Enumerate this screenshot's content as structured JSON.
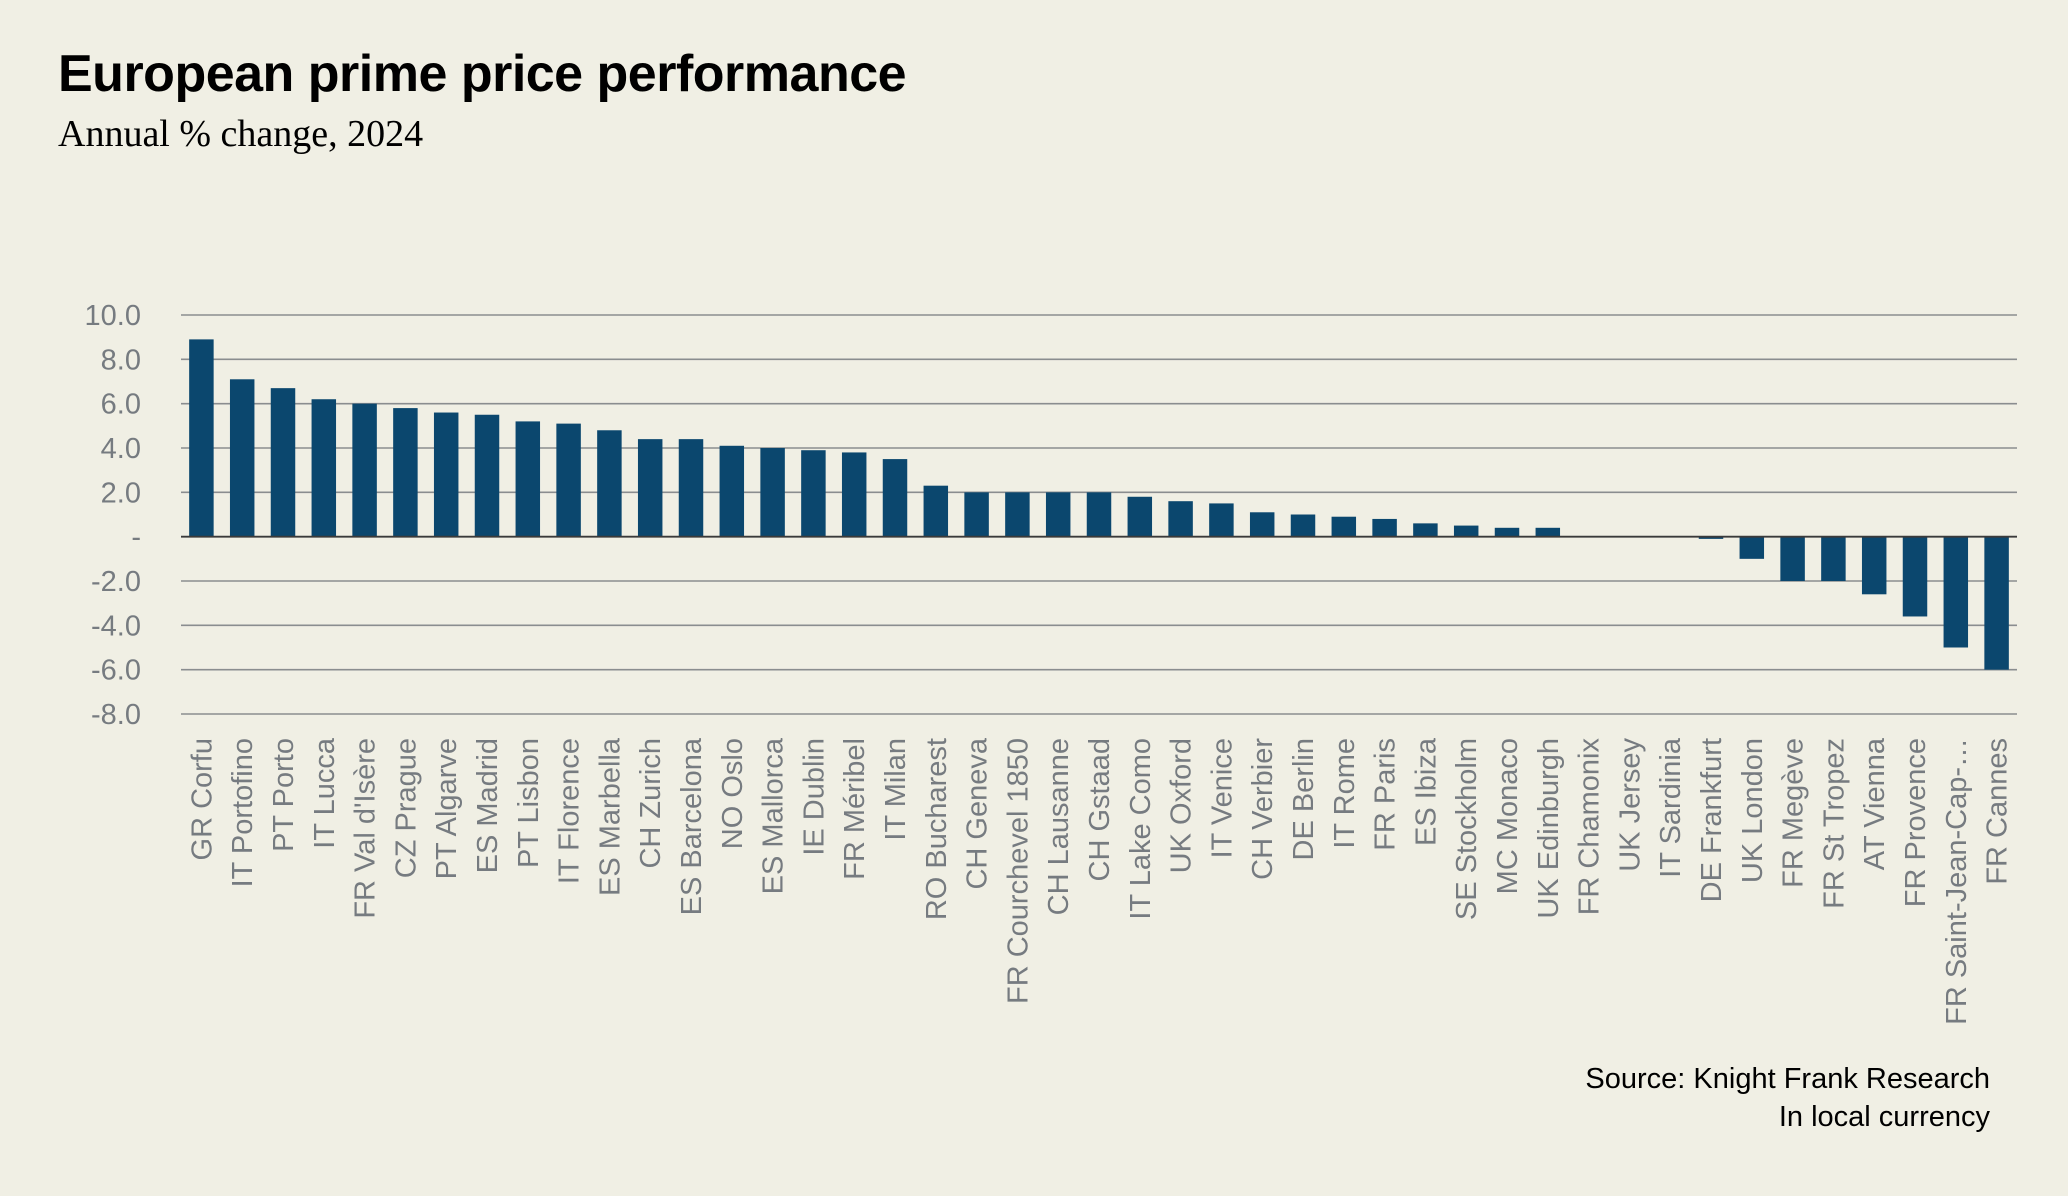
{
  "header": {
    "title": "European prime price performance",
    "subtitle": "Annual % change, 2024"
  },
  "footer": {
    "source": "Source: Knight Frank Research",
    "note": "In local currency"
  },
  "colors": {
    "background": "#f0efe4",
    "bar": "#0b476e",
    "axis_text": "#767b80",
    "gridline": "#8a8d8f",
    "zero_line": "#3a3a3a"
  },
  "chart_data": {
    "type": "bar",
    "title": "European prime price performance",
    "subtitle": "Annual % change, 2024",
    "xlabel": "",
    "ylabel": "",
    "ylim": [
      -8,
      10
    ],
    "yticks": [
      10,
      8,
      6,
      4,
      2,
      0,
      -2,
      -4,
      -6,
      -8
    ],
    "ytick_labels": [
      "10.0",
      "8.0",
      "6.0",
      "4.0",
      "2.0",
      "-",
      "-2.0",
      "-4.0",
      "-6.0",
      "-8.0"
    ],
    "grid": true,
    "legend": "none",
    "categories": [
      "GR Corfu",
      "IT Portofino",
      "PT Porto",
      "IT Lucca",
      "FR Val d'Isère",
      "CZ Prague",
      "PT Algarve",
      "ES Madrid",
      "PT Lisbon",
      "IT Florence",
      "ES Marbella",
      "CH Zurich",
      "ES Barcelona",
      "NO Oslo",
      "ES Mallorca",
      "IE Dublin",
      "FR Méribel",
      "IT Milan",
      "RO Bucharest",
      "CH Geneva",
      "FR Courchevel 1850",
      "CH Lausanne",
      "CH Gstaad",
      "IT Lake Como",
      "UK Oxford",
      "IT Venice",
      "CH Verbier",
      "DE Berlin",
      "IT Rome",
      "FR Paris",
      "ES Ibiza",
      "SE Stockholm",
      "MC Monaco",
      "UK Edinburgh",
      "FR Chamonix",
      "UK Jersey",
      "IT Sardinia",
      "DE Frankfurt",
      "UK London",
      "FR Megève",
      "FR St Tropez",
      "AT Vienna",
      "FR Provence",
      "FR Saint-Jean-Cap-…",
      "FR Cannes"
    ],
    "values": [
      8.9,
      7.1,
      6.7,
      6.2,
      6.0,
      5.8,
      5.6,
      5.5,
      5.2,
      5.1,
      4.8,
      4.4,
      4.4,
      4.1,
      4.0,
      3.9,
      3.8,
      3.5,
      2.3,
      2.0,
      2.0,
      2.0,
      2.0,
      1.8,
      1.6,
      1.5,
      1.1,
      1.0,
      0.9,
      0.8,
      0.6,
      0.5,
      0.4,
      0.4,
      0.0,
      0.0,
      0.0,
      -0.1,
      -1.0,
      -2.0,
      -2.0,
      -2.6,
      -3.6,
      -5.0,
      -6.0
    ],
    "annotations": [
      "Source: Knight Frank Research",
      "In local currency"
    ]
  }
}
